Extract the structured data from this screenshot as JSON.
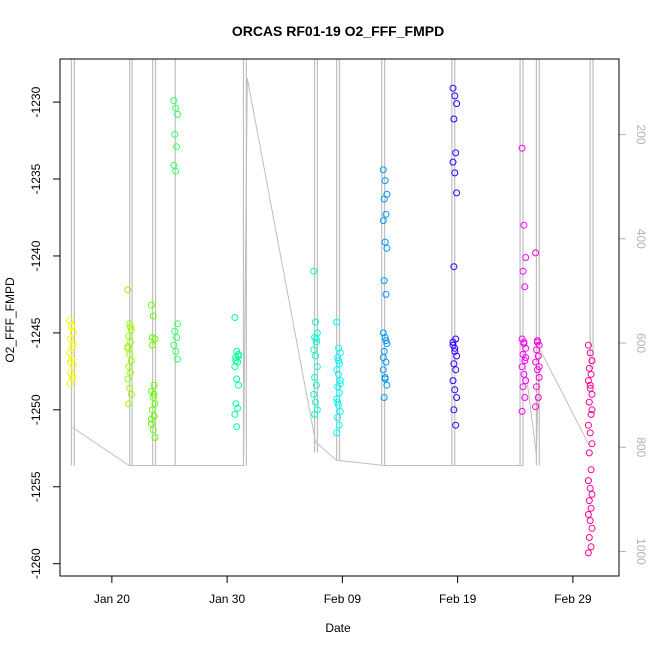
{
  "chart_data": {
    "type": "scatter",
    "title": "ORCAS RF01-19 O2_FFF_FMPD",
    "xlabel": "Date",
    "ylabel": "O2_FFF_FMPD",
    "ylim": [
      -1260.8,
      -1227.2
    ],
    "yticks": [
      -1230,
      -1235,
      -1240,
      -1245,
      -1250,
      -1255,
      -1260
    ],
    "ytick_labels": [
      "-1230",
      "-1235",
      "-1240",
      "-1245",
      "-1250",
      "-1255",
      "-1260"
    ],
    "xlim": [
      "2016-01-15T12:00",
      "2016-03-04T00:00"
    ],
    "xticks": [
      "2016-01-20",
      "2016-01-30",
      "2016-02-09",
      "2016-02-19",
      "2016-02-29"
    ],
    "xtick_labels": [
      "Jan 20",
      "Jan 30",
      "Feb 09",
      "Feb 19",
      "Feb 29"
    ],
    "secondary_axis": {
      "description": "pressure overlay (grey line)",
      "ticks": [
        200,
        400,
        600,
        800,
        1000
      ],
      "tick_labels": [
        "200",
        "400",
        "600",
        "800",
        "1000"
      ],
      "range_top": 55,
      "range_bottom": 1047,
      "color": "#b3b3b3"
    },
    "series": [
      {
        "flight": "RF01",
        "date": "2016-01-16T12:00",
        "color": "#ffff00",
        "values": [
          -1244.2,
          -1244.6,
          -1245.0,
          -1245.4,
          -1245.9,
          -1246.3,
          -1246.7,
          -1247.1,
          -1247.6,
          -1248.0,
          -1248.3,
          -1244.5,
          -1245.7,
          -1246.9,
          -1247.8
        ]
      },
      {
        "flight": "RF02",
        "date": "2016-01-21T13:00",
        "color": "#99ff00",
        "values": [
          -1242.2,
          -1244.4,
          -1244.8,
          -1245.2,
          -1245.6,
          -1246.0,
          -1246.4,
          -1246.8,
          -1247.2,
          -1247.6,
          -1248.0,
          -1248.6,
          -1249.0,
          -1249.6,
          -1244.6,
          -1245.9
        ]
      },
      {
        "flight": "RF03",
        "date": "2016-01-23T14:00",
        "color": "#66ff00",
        "values": [
          -1243.2,
          -1243.9,
          -1245.4,
          -1245.8,
          -1248.4,
          -1248.8,
          -1249.2,
          -1249.6,
          -1250.0,
          -1250.4,
          -1250.9,
          -1251.3,
          -1251.8,
          -1245.3,
          -1249.0,
          -1250.6
        ]
      },
      {
        "flight": "RF04",
        "date": "2016-01-25T13:00",
        "color": "#33ff66",
        "values": [
          -1229.9,
          -1230.4,
          -1230.8,
          -1232.1,
          -1232.9,
          -1234.1,
          -1234.5,
          -1244.4,
          -1244.9,
          -1245.3,
          -1245.8,
          -1246.2,
          -1246.7
        ]
      },
      {
        "flight": "RF05",
        "date": "2016-01-30T20:00",
        "color": "#00ff99",
        "values": [
          -1244.0,
          -1246.2,
          -1246.4,
          -1246.6,
          -1246.9,
          -1247.2,
          -1248.0,
          -1248.4,
          -1249.6,
          -1249.9,
          -1250.3,
          -1251.1,
          -1246.5,
          -1246.8
        ]
      },
      {
        "flight": "RF06",
        "date": "2016-02-06T16:00",
        "color": "#00ffcc",
        "values": [
          -1241.0,
          -1244.3,
          -1245.0,
          -1245.3,
          -1245.6,
          -1246.1,
          -1246.5,
          -1247.2,
          -1247.9,
          -1248.4,
          -1249.0,
          -1249.5,
          -1250.0,
          -1250.3,
          -1245.4
        ]
      },
      {
        "flight": "RF07",
        "date": "2016-02-08T16:00",
        "color": "#00ffff",
        "values": [
          -1244.3,
          -1246.0,
          -1246.3,
          -1246.6,
          -1247.0,
          -1247.4,
          -1247.7,
          -1248.1,
          -1248.5,
          -1248.9,
          -1249.3,
          -1249.7,
          -1250.1,
          -1250.5,
          -1251.0,
          -1251.5,
          -1246.8,
          -1248.3,
          -1249.5
        ]
      },
      {
        "flight": "RF08",
        "date": "2016-02-12T17:00",
        "color": "#0099ff",
        "values": [
          -1234.4,
          -1235.1,
          -1236.0,
          -1236.3,
          -1237.3,
          -1237.7,
          -1239.1,
          -1239.5,
          -1241.6,
          -1242.5,
          -1245.0,
          -1245.3,
          -1245.7,
          -1246.2,
          -1246.9,
          -1247.4,
          -1247.9,
          -1248.4,
          -1249.2,
          -1245.5,
          -1246.6,
          -1248.0
        ]
      },
      {
        "flight": "RF09",
        "date": "2016-02-18T18:00",
        "color": "#3300ff",
        "values": [
          -1229.1,
          -1229.6,
          -1230.1,
          -1231.1,
          -1233.3,
          -1233.9,
          -1234.6,
          -1235.9,
          -1240.7,
          -1245.4,
          -1245.6,
          -1246.0,
          -1246.5,
          -1247.0,
          -1247.4,
          -1248.1,
          -1248.7,
          -1249.2,
          -1250.0,
          -1251.0,
          -1245.8,
          -1246.2
        ]
      },
      {
        "flight": "RF10",
        "date": "2016-02-24T18:00",
        "color": "#ff00ff",
        "values": [
          -1233.0,
          -1238.0,
          -1240.1,
          -1241.0,
          -1242.0,
          -1245.4,
          -1245.7,
          -1246.0,
          -1246.4,
          -1246.8,
          -1247.2,
          -1247.7,
          -1248.1,
          -1248.5,
          -1249.2,
          -1250.1,
          -1245.6,
          -1246.6
        ]
      },
      {
        "flight": "RF11",
        "date": "2016-02-25T22:00",
        "color": "#ff00dd",
        "values": [
          -1239.8,
          -1245.5,
          -1245.8,
          -1246.1,
          -1246.5,
          -1246.9,
          -1247.4,
          -1247.9,
          -1248.5,
          -1249.2,
          -1249.8,
          -1245.6,
          -1247.2
        ]
      },
      {
        "flight": "RF12",
        "date": "2016-03-01T12:00",
        "color": "#ff0099",
        "values": [
          -1245.8,
          -1246.3,
          -1246.8,
          -1247.3,
          -1247.7,
          -1248.1,
          -1248.6,
          -1249.0,
          -1249.5,
          -1250.3,
          -1251.0,
          -1251.5,
          -1252.2,
          -1252.8,
          -1253.9,
          -1254.6,
          -1255.1,
          -1255.5,
          -1255.9,
          -1256.4,
          -1256.8,
          -1257.2,
          -1257.7,
          -1258.3,
          -1258.9,
          -1259.3,
          -1248.4,
          -1250.0
        ]
      }
    ],
    "overlay_line": {
      "color": "#bfbfbf",
      "description": "flight-altitude pressure trace, vertical sweeps during each flight, connected baseline between flights",
      "sweeps": [
        {
          "date": "2016-01-16T12:00",
          "top": 55,
          "bottom": 835
        },
        {
          "date": "2016-01-16T18:00",
          "top": 55,
          "bottom": 835
        },
        {
          "date": "2016-01-21T13:00",
          "top": 55,
          "bottom": 835
        },
        {
          "date": "2016-01-21T18:00",
          "top": 55,
          "bottom": 835
        },
        {
          "date": "2016-01-23T13:00",
          "top": 55,
          "bottom": 835
        },
        {
          "date": "2016-01-23T19:00",
          "top": 55,
          "bottom": 835
        },
        {
          "date": "2016-01-25T12:00",
          "top": 55,
          "bottom": 835
        },
        {
          "date": "2016-01-31T10:00",
          "top": 55,
          "bottom": 835
        },
        {
          "date": "2016-01-31T16:00",
          "top": 55,
          "bottom": 835
        },
        {
          "date": "2016-02-06T14:00",
          "top": 55,
          "bottom": 810
        },
        {
          "date": "2016-02-06T20:00",
          "top": 55,
          "bottom": 810
        },
        {
          "date": "2016-02-08T12:00",
          "top": 55,
          "bottom": 825
        },
        {
          "date": "2016-02-08T18:00",
          "top": 55,
          "bottom": 825
        },
        {
          "date": "2016-02-12T10:00",
          "top": 55,
          "bottom": 835
        },
        {
          "date": "2016-02-12T16:00",
          "top": 55,
          "bottom": 835
        },
        {
          "date": "2016-02-18T12:00",
          "top": 55,
          "bottom": 835
        },
        {
          "date": "2016-02-18T18:00",
          "top": 55,
          "bottom": 835
        },
        {
          "date": "2016-02-24T10:00",
          "top": 55,
          "bottom": 835
        },
        {
          "date": "2016-02-24T16:00",
          "top": 55,
          "bottom": 835
        },
        {
          "date": "2016-02-25T20:00",
          "top": 55,
          "bottom": 835
        },
        {
          "date": "2016-02-26T02:00",
          "top": 55,
          "bottom": 835
        },
        {
          "date": "2016-03-01T12:00",
          "top": 55,
          "bottom": 650
        },
        {
          "date": "2016-03-01T18:00",
          "top": 55,
          "bottom": 650
        }
      ],
      "baseline": [
        [
          "2016-01-16T14:00",
          762
        ],
        [
          "2016-01-21T12:00",
          835
        ],
        [
          "2016-01-23T12:00",
          835
        ],
        [
          "2016-01-25T12:00",
          835
        ],
        [
          "2016-01-31T10:00",
          835
        ],
        [
          "2016-01-31T18:00",
          92
        ],
        [
          "2016-02-06T16:00",
          790
        ],
        [
          "2016-02-08T12:00",
          825
        ],
        [
          "2016-02-12T16:00",
          835
        ],
        [
          "2016-02-18T18:00",
          835
        ],
        [
          "2016-02-24T16:00",
          835
        ],
        [
          "2016-02-24T16:00",
          610
        ],
        [
          "2016-02-25T20:00",
          815
        ],
        [
          "2016-02-26T02:00",
          610
        ],
        [
          "2016-03-01T12:00",
          800
        ]
      ]
    },
    "grid": false,
    "legend": "none"
  }
}
